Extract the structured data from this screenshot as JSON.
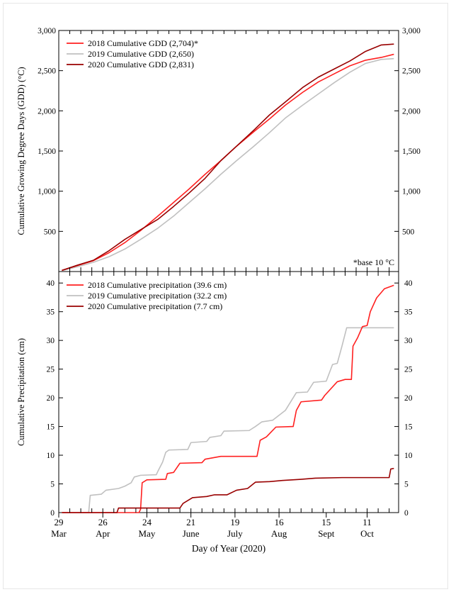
{
  "chart_data": [
    {
      "type": "line",
      "ylabel": "Cumulative Growing Degree Days (GDD) (°C)",
      "ylim": [
        0,
        3000
      ],
      "yticks": [
        500,
        1000,
        1500,
        2000,
        2500,
        3000
      ],
      "ytick_labels": [
        "500",
        "1,000",
        "1,500",
        "2,000",
        "2,500",
        "3,000"
      ],
      "annotation": "*base 10 °C",
      "legend_position": "top-left",
      "grid": false,
      "series": [
        {
          "name": "2018 Cumulative GDD (2,704)*",
          "color": "#ff2020",
          "points": [
            [
              "2020-03-31",
              15
            ],
            [
              "2020-04-10",
              75
            ],
            [
              "2020-04-20",
              135
            ],
            [
              "2020-04-30",
              235
            ],
            [
              "2020-05-10",
              360
            ],
            [
              "2020-05-20",
              510
            ],
            [
              "2020-05-31",
              690
            ],
            [
              "2020-06-10",
              860
            ],
            [
              "2020-06-20",
              1030
            ],
            [
              "2020-06-30",
              1210
            ],
            [
              "2020-07-10",
              1380
            ],
            [
              "2020-07-20",
              1560
            ],
            [
              "2020-07-31",
              1740
            ],
            [
              "2020-08-10",
              1900
            ],
            [
              "2020-08-20",
              2070
            ],
            [
              "2020-08-31",
              2230
            ],
            [
              "2020-09-10",
              2360
            ],
            [
              "2020-09-20",
              2460
            ],
            [
              "2020-09-30",
              2560
            ],
            [
              "2020-10-10",
              2630
            ],
            [
              "2020-10-20",
              2665
            ],
            [
              "2020-10-28",
              2704
            ]
          ]
        },
        {
          "name": "2019 Cumulative GDD (2,650)",
          "color": "#c0c0c0",
          "points": [
            [
              "2020-03-31",
              12
            ],
            [
              "2020-04-10",
              60
            ],
            [
              "2020-04-20",
              115
            ],
            [
              "2020-04-30",
              185
            ],
            [
              "2020-05-10",
              280
            ],
            [
              "2020-05-20",
              400
            ],
            [
              "2020-05-31",
              540
            ],
            [
              "2020-06-10",
              690
            ],
            [
              "2020-06-20",
              860
            ],
            [
              "2020-06-30",
              1030
            ],
            [
              "2020-07-10",
              1210
            ],
            [
              "2020-07-20",
              1380
            ],
            [
              "2020-07-31",
              1560
            ],
            [
              "2020-08-10",
              1730
            ],
            [
              "2020-08-20",
              1910
            ],
            [
              "2020-08-31",
              2070
            ],
            [
              "2020-09-10",
              2210
            ],
            [
              "2020-09-20",
              2350
            ],
            [
              "2020-09-30",
              2480
            ],
            [
              "2020-10-10",
              2590
            ],
            [
              "2020-10-20",
              2640
            ],
            [
              "2020-10-28",
              2650
            ]
          ]
        },
        {
          "name": "2020 Cumulative GDD (2,831)",
          "color": "#990000",
          "points": [
            [
              "2020-03-31",
              14
            ],
            [
              "2020-04-10",
              80
            ],
            [
              "2020-04-20",
              140
            ],
            [
              "2020-04-30",
              260
            ],
            [
              "2020-05-10",
              400
            ],
            [
              "2020-05-20",
              520
            ],
            [
              "2020-05-31",
              650
            ],
            [
              "2020-06-10",
              810
            ],
            [
              "2020-06-20",
              980
            ],
            [
              "2020-06-30",
              1160
            ],
            [
              "2020-07-10",
              1380
            ],
            [
              "2020-07-20",
              1560
            ],
            [
              "2020-07-31",
              1760
            ],
            [
              "2020-08-10",
              1950
            ],
            [
              "2020-08-20",
              2110
            ],
            [
              "2020-08-31",
              2290
            ],
            [
              "2020-09-10",
              2420
            ],
            [
              "2020-09-20",
              2520
            ],
            [
              "2020-09-30",
              2620
            ],
            [
              "2020-10-10",
              2740
            ],
            [
              "2020-10-20",
              2820
            ],
            [
              "2020-10-28",
              2831
            ]
          ]
        }
      ]
    },
    {
      "type": "line",
      "title": "",
      "xlabel": "Day of Year (2020)",
      "ylabel": "Cumulative Precipitation (cm)",
      "ylim": [
        0,
        42
      ],
      "yticks": [
        0,
        5,
        10,
        15,
        20,
        25,
        30,
        35,
        40
      ],
      "xlim": [
        "2020-03-29",
        "2020-10-31"
      ],
      "xtick_dates": [
        "2020-03-29",
        "2020-04-26",
        "2020-05-24",
        "2020-06-21",
        "2020-07-19",
        "2020-08-16",
        "2020-09-15",
        "2020-10-11"
      ],
      "xtick_labels": [
        {
          "day": "29",
          "month": "Mar"
        },
        {
          "day": "26",
          "month": "Apr"
        },
        {
          "day": "24",
          "month": "May"
        },
        {
          "day": "21",
          "month": "June"
        },
        {
          "day": "19",
          "month": "July"
        },
        {
          "day": "16",
          "month": "Aug"
        },
        {
          "day": "15",
          "month": "Sept"
        },
        {
          "day": "11",
          "month": "Oct"
        }
      ],
      "legend_position": "top-left",
      "grid": false,
      "series": [
        {
          "name": "2018 Cumulative precipitation (39.6 cm)",
          "color": "#ff2020",
          "points": [
            [
              "2020-03-31",
              0
            ],
            [
              "2020-05-19",
              0
            ],
            [
              "2020-05-20",
              0.6
            ],
            [
              "2020-05-21",
              5.2
            ],
            [
              "2020-05-24",
              5.7
            ],
            [
              "2020-06-05",
              5.8
            ],
            [
              "2020-06-06",
              6.8
            ],
            [
              "2020-06-10",
              7.0
            ],
            [
              "2020-06-14",
              8.6
            ],
            [
              "2020-06-28",
              8.7
            ],
            [
              "2020-06-30",
              9.3
            ],
            [
              "2020-07-10",
              9.8
            ],
            [
              "2020-08-02",
              9.8
            ],
            [
              "2020-08-04",
              12.6
            ],
            [
              "2020-08-08",
              13.2
            ],
            [
              "2020-08-14",
              14.9
            ],
            [
              "2020-08-25",
              15.0
            ],
            [
              "2020-08-27",
              17.8
            ],
            [
              "2020-08-30",
              19.3
            ],
            [
              "2020-09-12",
              19.6
            ],
            [
              "2020-09-14",
              20.4
            ],
            [
              "2020-09-22",
              22.8
            ],
            [
              "2020-09-27",
              23.2
            ],
            [
              "2020-10-01",
              23.2
            ],
            [
              "2020-10-02",
              29.0
            ],
            [
              "2020-10-05",
              30.5
            ],
            [
              "2020-10-08",
              32.4
            ],
            [
              "2020-10-11",
              32.6
            ],
            [
              "2020-10-13",
              35.0
            ],
            [
              "2020-10-17",
              37.4
            ],
            [
              "2020-10-22",
              39.0
            ],
            [
              "2020-10-28",
              39.6
            ]
          ]
        },
        {
          "name": "2019 Cumulative precipitation (32.2 cm)",
          "color": "#c0c0c0",
          "points": [
            [
              "2020-03-31",
              0
            ],
            [
              "2020-04-17",
              0
            ],
            [
              "2020-04-18",
              3.0
            ],
            [
              "2020-04-25",
              3.2
            ],
            [
              "2020-04-28",
              3.9
            ],
            [
              "2020-05-06",
              4.2
            ],
            [
              "2020-05-10",
              4.6
            ],
            [
              "2020-05-14",
              5.2
            ],
            [
              "2020-05-16",
              6.2
            ],
            [
              "2020-05-20",
              6.5
            ],
            [
              "2020-05-30",
              6.6
            ],
            [
              "2020-05-31",
              7.2
            ],
            [
              "2020-06-03",
              8.8
            ],
            [
              "2020-06-05",
              10.5
            ],
            [
              "2020-06-07",
              10.9
            ],
            [
              "2020-06-19",
              11.0
            ],
            [
              "2020-06-21",
              12.2
            ],
            [
              "2020-07-01",
              12.4
            ],
            [
              "2020-07-03",
              13.1
            ],
            [
              "2020-07-10",
              13.4
            ],
            [
              "2020-07-12",
              14.2
            ],
            [
              "2020-07-28",
              14.3
            ],
            [
              "2020-08-01",
              15.0
            ],
            [
              "2020-08-05",
              15.8
            ],
            [
              "2020-08-12",
              16.1
            ],
            [
              "2020-08-20",
              17.8
            ],
            [
              "2020-08-27",
              20.9
            ],
            [
              "2020-09-03",
              21.0
            ],
            [
              "2020-09-07",
              22.7
            ],
            [
              "2020-09-15",
              22.9
            ],
            [
              "2020-09-19",
              25.8
            ],
            [
              "2020-09-22",
              26.0
            ],
            [
              "2020-09-25",
              29.0
            ],
            [
              "2020-09-28",
              32.2
            ],
            [
              "2020-10-28",
              32.2
            ]
          ]
        },
        {
          "name": "2020 Cumulative precipitation (7.7 cm)",
          "color": "#990000",
          "points": [
            [
              "2020-03-31",
              0
            ],
            [
              "2020-05-05",
              0
            ],
            [
              "2020-05-06",
              0.8
            ],
            [
              "2020-06-14",
              0.8
            ],
            [
              "2020-06-16",
              1.6
            ],
            [
              "2020-06-22",
              2.6
            ],
            [
              "2020-07-01",
              2.8
            ],
            [
              "2020-07-06",
              3.1
            ],
            [
              "2020-07-14",
              3.1
            ],
            [
              "2020-07-20",
              3.9
            ],
            [
              "2020-07-27",
              4.2
            ],
            [
              "2020-08-01",
              5.3
            ],
            [
              "2020-08-10",
              5.4
            ],
            [
              "2020-08-18",
              5.6
            ],
            [
              "2020-08-30",
              5.8
            ],
            [
              "2020-09-08",
              6.0
            ],
            [
              "2020-09-25",
              6.1
            ],
            [
              "2020-10-25",
              6.1
            ],
            [
              "2020-10-26",
              7.6
            ],
            [
              "2020-10-28",
              7.7
            ]
          ]
        }
      ]
    }
  ]
}
